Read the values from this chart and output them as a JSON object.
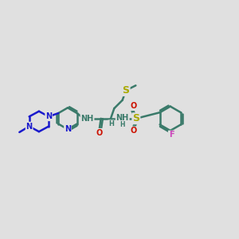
{
  "background_color": "#e0e0e0",
  "bond_color": "#3a7a6a",
  "bond_width": 1.8,
  "figsize": [
    3.0,
    3.0
  ],
  "dpi": 100,
  "atom_colors": {
    "N": "#1a1acc",
    "O": "#cc1100",
    "S": "#aaaa00",
    "F": "#cc44bb",
    "H": "#3a7a6a"
  },
  "font_size": 7.0,
  "xlim": [
    0,
    12
  ],
  "ylim": [
    0,
    12
  ]
}
